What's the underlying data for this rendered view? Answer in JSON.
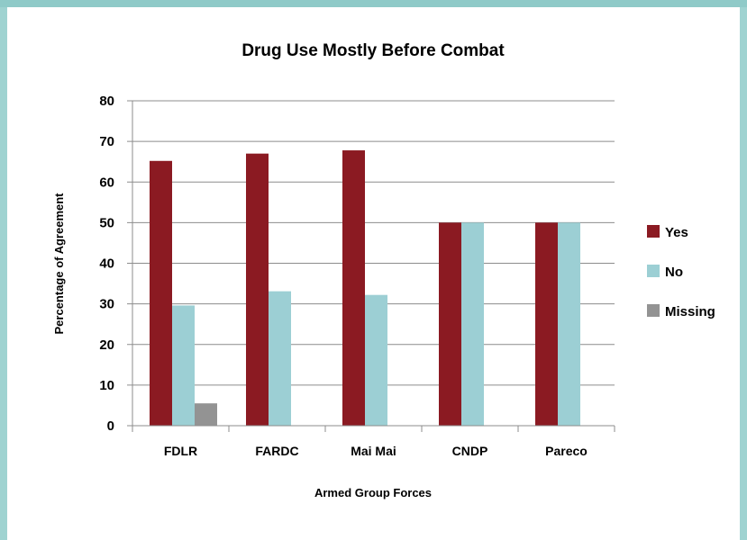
{
  "chart_data": {
    "type": "bar",
    "title": "Drug Use Mostly Before Combat",
    "xlabel": "Armed Group Forces",
    "ylabel": "Percentage of Agreement",
    "categories": [
      "FDLR",
      "FARDC",
      "Mai Mai",
      "CNDP",
      "Pareco"
    ],
    "series": [
      {
        "name": "Yes",
        "color": "#8b1a22",
        "values": [
          65.2,
          67,
          67.8,
          50,
          50
        ]
      },
      {
        "name": "No",
        "color": "#9ccfd4",
        "values": [
          29.6,
          33.1,
          32.2,
          50,
          50
        ]
      },
      {
        "name": "Missing",
        "color": "#939393",
        "values": [
          5.5,
          0,
          0,
          0,
          0
        ]
      }
    ],
    "ylim": [
      0,
      80
    ],
    "yticks": [
      0,
      10,
      20,
      30,
      40,
      50,
      60,
      70,
      80
    ],
    "grid": true,
    "legend": "right"
  }
}
